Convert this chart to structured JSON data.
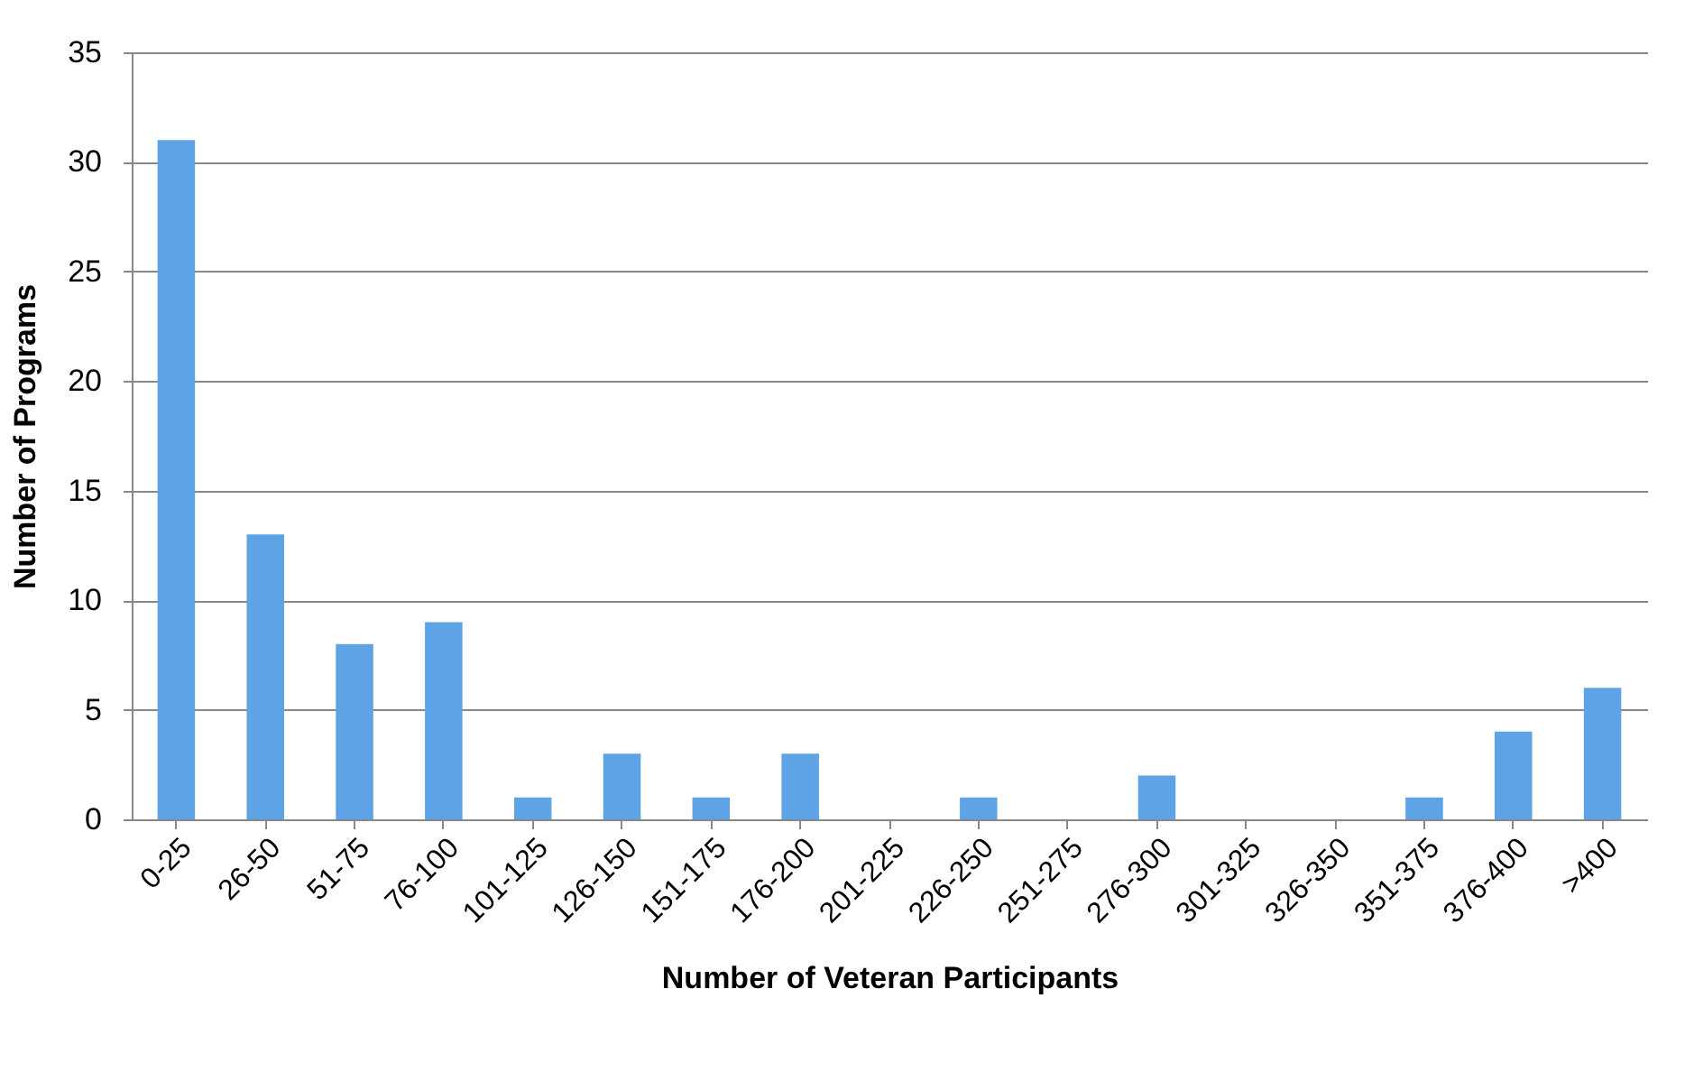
{
  "chart_data": {
    "type": "bar",
    "xlabel": "Number of Veteran Participants",
    "ylabel": "Number of Programs",
    "categories": [
      "0-25",
      "26-50",
      "51-75",
      "76-100",
      "101-125",
      "126-150",
      "151-175",
      "176-200",
      "201-225",
      "226-250",
      "251-275",
      "276-300",
      "301-325",
      "326-350",
      "351-375",
      "376-400",
      ">400"
    ],
    "values": [
      31,
      13,
      8,
      9,
      1,
      3,
      1,
      3,
      0,
      1,
      0,
      2,
      0,
      0,
      1,
      4,
      6
    ],
    "color": "#5ea3e6",
    "ylim": [
      0,
      35
    ],
    "yticks": [
      0,
      5,
      10,
      15,
      20,
      25,
      30,
      35
    ],
    "grid": "y"
  }
}
